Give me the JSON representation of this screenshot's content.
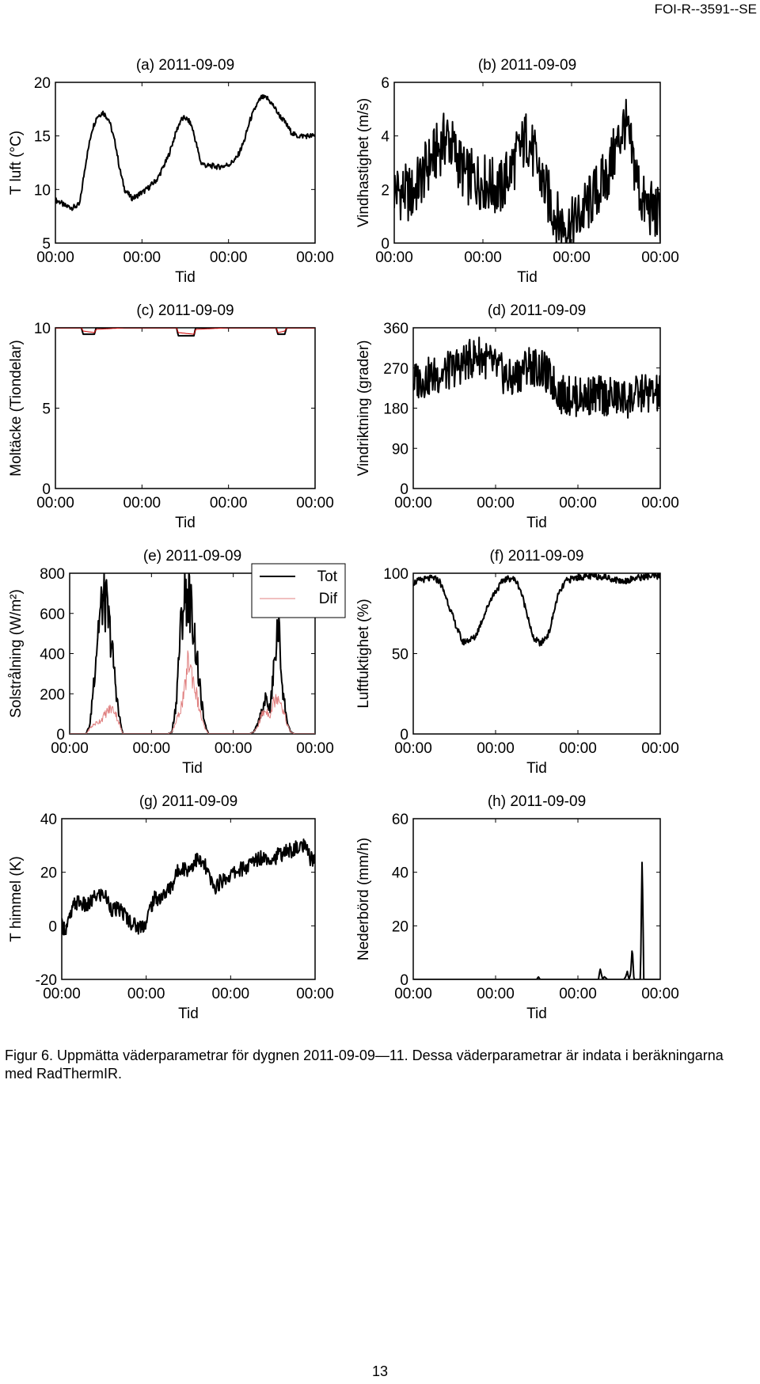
{
  "header": {
    "doc_code": "FOI-R--3591--SE"
  },
  "caption": {
    "text": "Figur 6. Uppmätta väderparametrar för dygnen 2011-09-09—11. Dessa väderparametrar är indata i beräkningarna med RadThermIR."
  },
  "footer": {
    "page_number": "13"
  },
  "chart_data": [
    {
      "id": "a",
      "type": "line",
      "title": "(a) 2011-09-09",
      "xlabel": "Tid",
      "ylabel": "T luft (°C)",
      "ylim": [
        5,
        20
      ],
      "yticks": [
        5,
        10,
        15,
        20
      ],
      "xtick_labels": [
        "00:00",
        "00:00",
        "00:00",
        "00:00"
      ],
      "x_days": [
        0,
        0.06,
        0.1,
        0.15,
        0.2,
        0.28,
        0.35,
        0.42,
        0.48,
        0.55,
        0.62,
        0.7,
        0.74,
        0.8,
        0.88,
        0.93,
        0.97,
        1.02,
        1.08,
        1.18,
        1.3,
        1.4,
        1.45,
        1.5,
        1.55,
        1.58,
        1.62,
        1.68,
        1.75,
        1.82,
        1.88,
        1.95,
        2.02,
        2.1,
        2.18,
        2.25,
        2.32,
        2.38,
        2.45,
        2.52,
        2.58,
        2.65,
        2.72,
        2.78,
        2.85,
        2.92,
        3.0
      ],
      "series": [
        {
          "color": "#000000",
          "values": [
            9,
            8.8,
            8.5,
            8.4,
            8.3,
            8.6,
            12.5,
            15.5,
            16.8,
            17.2,
            16.5,
            14,
            12,
            10,
            9.2,
            9.3,
            9.6,
            9.8,
            10.2,
            11,
            13,
            15.5,
            16.5,
            16.7,
            16.3,
            15.8,
            14.5,
            12.5,
            12.2,
            12.2,
            12.1,
            12.2,
            12.4,
            13,
            14.5,
            16.5,
            17.8,
            18.6,
            18.5,
            17.8,
            17,
            16.3,
            15.4,
            15,
            15,
            15,
            15
          ]
        }
      ]
    },
    {
      "id": "b",
      "type": "line",
      "title": "(b) 2011-09-09",
      "xlabel": "Tid",
      "ylabel": "Vindhastighet (m/s)",
      "ylim": [
        0,
        6
      ],
      "yticks": [
        0,
        2,
        4,
        6
      ],
      "xtick_labels": [
        "00:00",
        "00:00",
        "00:00",
        "00:00"
      ],
      "x_days": [
        0,
        0.2,
        0.4,
        0.6,
        0.8,
        1.0,
        1.2,
        1.5,
        1.7,
        1.85,
        2.0,
        2.2,
        2.4,
        2.6,
        2.8,
        3.0
      ],
      "series": [
        {
          "color": "#000000",
          "values": [
            2.0,
            1.8,
            3.0,
            4.0,
            2.5,
            2.3,
            2.0,
            4.0,
            2.0,
            0.8,
            0.6,
            1.5,
            2.5,
            4.5,
            1.5,
            1.0
          ]
        }
      ]
    },
    {
      "id": "c",
      "type": "line",
      "title": "(c) 2011-09-09",
      "xlabel": "Tid",
      "ylabel": "Moltäcke (Tiondelar)",
      "ylim": [
        0,
        10
      ],
      "yticks": [
        0,
        5,
        10
      ],
      "xtick_labels": [
        "00:00",
        "00:00",
        "00:00",
        "00:00"
      ],
      "x_days": [
        0,
        0.3,
        0.32,
        0.45,
        0.47,
        0.8,
        1.2,
        1.4,
        1.42,
        1.6,
        1.62,
        2.0,
        2.55,
        2.57,
        2.65,
        2.67,
        3.0
      ],
      "series": [
        {
          "color": "#000000",
          "values": [
            10,
            10,
            9.6,
            9.6,
            10,
            10,
            10,
            10,
            9.5,
            9.5,
            10,
            10,
            10,
            9.6,
            9.6,
            10,
            10
          ]
        },
        {
          "color": "#d00000",
          "values": [
            10,
            10,
            9.8,
            9.7,
            9.9,
            10,
            10,
            10,
            9.7,
            9.6,
            9.9,
            10,
            10,
            9.7,
            9.8,
            10,
            10
          ]
        }
      ]
    },
    {
      "id": "d",
      "type": "line",
      "title": "(d) 2011-09-09",
      "xlabel": "Tid",
      "ylabel": "Vindriktning (grader)",
      "ylim": [
        0,
        360
      ],
      "yticks": [
        0,
        90,
        180,
        270,
        360
      ],
      "xtick_labels": [
        "00:00",
        "00:00",
        "00:00",
        "00:00"
      ],
      "x_days": [
        0,
        0.2,
        0.4,
        0.6,
        0.8,
        1.0,
        1.2,
        1.4,
        1.6,
        1.8,
        2.0,
        2.2,
        2.4,
        2.6,
        2.8,
        3.0
      ],
      "series": [
        {
          "color": "#000000",
          "values": [
            240,
            250,
            260,
            280,
            300,
            270,
            240,
            280,
            260,
            210,
            205,
            210,
            205,
            200,
            215,
            210
          ]
        }
      ]
    },
    {
      "id": "e",
      "type": "line",
      "title": "(e) 2011-09-09",
      "xlabel": "Tid",
      "ylabel": "Solstrålning (W/m²)",
      "ylim": [
        0,
        800
      ],
      "yticks": [
        0,
        200,
        400,
        600,
        800
      ],
      "xtick_labels": [
        "00:00",
        "00:00",
        "00:00",
        "00:00"
      ],
      "legend": {
        "position": "top-right"
      },
      "x_days": [
        0,
        0.2,
        0.25,
        0.3,
        0.35,
        0.4,
        0.45,
        0.5,
        0.55,
        0.6,
        0.65,
        0.7,
        0.75,
        1.0,
        1.2,
        1.25,
        1.3,
        1.35,
        1.4,
        1.45,
        1.5,
        1.55,
        1.6,
        1.65,
        1.7,
        1.75,
        2.0,
        2.2,
        2.25,
        2.3,
        2.35,
        2.4,
        2.45,
        2.5,
        2.55,
        2.6,
        2.65,
        2.7,
        2.75,
        3.0
      ],
      "series": [
        {
          "name": "Tot",
          "color": "#000000",
          "values": [
            0,
            0,
            50,
            300,
            550,
            680,
            650,
            500,
            300,
            100,
            0,
            0,
            0,
            0,
            0,
            10,
            150,
            500,
            700,
            720,
            600,
            400,
            200,
            50,
            0,
            0,
            0,
            0,
            10,
            50,
            120,
            180,
            120,
            350,
            560,
            250,
            80,
            10,
            0,
            0
          ]
        },
        {
          "name": "Dif",
          "color": "#e08080",
          "values": [
            0,
            0,
            30,
            50,
            60,
            80,
            110,
            130,
            120,
            60,
            0,
            0,
            0,
            0,
            0,
            10,
            60,
            120,
            200,
            380,
            300,
            200,
            100,
            30,
            0,
            0,
            0,
            0,
            10,
            40,
            100,
            120,
            100,
            170,
            200,
            140,
            60,
            10,
            0,
            0
          ]
        }
      ]
    },
    {
      "id": "f",
      "type": "line",
      "title": "(f) 2011-09-09",
      "xlabel": "Tid",
      "ylabel": "Luftfuktighet (%)",
      "ylim": [
        0,
        100
      ],
      "yticks": [
        0,
        50,
        100
      ],
      "xtick_labels": [
        "00:00",
        "00:00",
        "00:00",
        "00:00"
      ],
      "x_days": [
        0,
        0.1,
        0.25,
        0.32,
        0.4,
        0.5,
        0.6,
        0.75,
        0.95,
        1.1,
        1.2,
        1.25,
        1.3,
        1.4,
        1.45,
        1.55,
        1.65,
        1.75,
        1.85,
        1.95,
        2.1,
        2.3,
        2.45,
        2.55,
        2.7,
        2.85,
        3.0
      ],
      "series": [
        {
          "color": "#000000",
          "values": [
            94,
            96,
            97,
            95,
            85,
            70,
            57,
            60,
            85,
            96,
            97,
            95,
            90,
            72,
            60,
            56,
            63,
            85,
            95,
            97,
            98,
            98,
            96,
            95,
            97,
            98,
            98
          ]
        }
      ]
    },
    {
      "id": "g",
      "type": "line",
      "title": "(g) 2011-09-09",
      "xlabel": "Tid",
      "ylabel": "T himmel (K)",
      "ylim": [
        -20,
        40
      ],
      "yticks": [
        -20,
        0,
        20,
        40
      ],
      "xtick_labels": [
        "00:00",
        "00:00",
        "00:00",
        "00:00"
      ],
      "x_days": [
        0,
        0.05,
        0.1,
        0.15,
        0.2,
        0.3,
        0.4,
        0.5,
        0.6,
        0.7,
        0.8,
        0.9,
        1.0,
        1.05,
        1.1,
        1.2,
        1.3,
        1.4,
        1.5,
        1.6,
        1.7,
        1.8,
        1.9,
        2.0,
        2.1,
        2.2,
        2.3,
        2.4,
        2.5,
        2.6,
        2.7,
        2.8,
        2.85,
        2.9,
        2.95,
        3.0
      ],
      "series": [
        {
          "color": "#000000",
          "values": [
            0,
            -1,
            3,
            8,
            9,
            7,
            11,
            12,
            6,
            6,
            2,
            -0.5,
            1,
            7,
            10,
            11,
            15,
            22,
            21,
            25,
            22,
            14,
            17,
            19,
            21,
            22,
            25,
            26,
            25,
            27,
            28,
            29,
            30,
            28,
            25,
            24
          ]
        }
      ]
    },
    {
      "id": "h",
      "type": "line",
      "title": "(h) 2011-09-09",
      "xlabel": "Tid",
      "ylabel": "Nederbörd (mm/h)",
      "ylim": [
        0,
        60
      ],
      "yticks": [
        0,
        20,
        40,
        60
      ],
      "xtick_labels": [
        "00:00",
        "00:00",
        "00:00",
        "00:00"
      ],
      "x_days": [
        0,
        1.5,
        1.52,
        1.54,
        1.7,
        2.0,
        2.25,
        2.27,
        2.3,
        2.32,
        2.36,
        2.4,
        2.5,
        2.56,
        2.58,
        2.6,
        2.62,
        2.64,
        2.66,
        2.68,
        2.72,
        2.76,
        2.78,
        2.8,
        2.82,
        3.0
      ],
      "series": [
        {
          "color": "#000000",
          "values": [
            0,
            0,
            1,
            0,
            0,
            0,
            0,
            4,
            0,
            1,
            0,
            0,
            0,
            0,
            1,
            3,
            0,
            2,
            12,
            0,
            0,
            0,
            47,
            0,
            0,
            0
          ]
        }
      ]
    }
  ]
}
